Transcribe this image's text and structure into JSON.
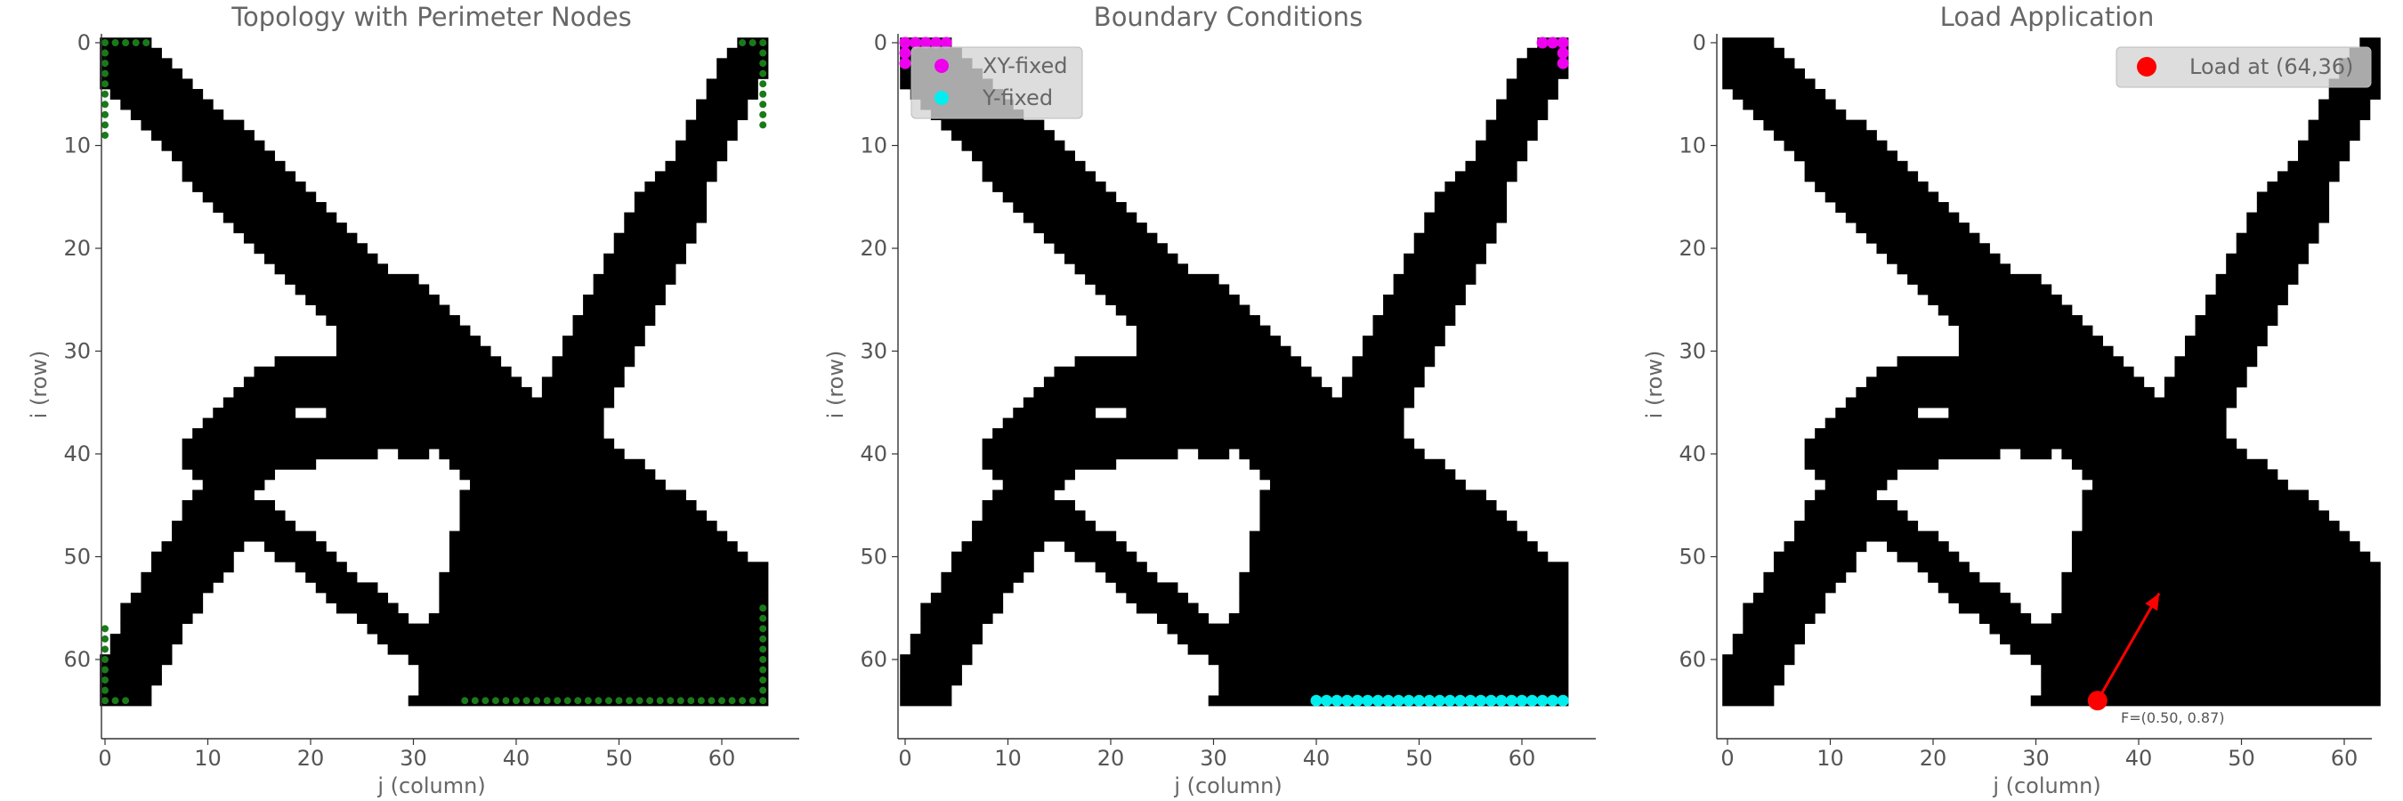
{
  "figure": {
    "xlabel": "j (column)",
    "ylabel": "i (row)",
    "xticks": [
      0,
      10,
      20,
      30,
      40,
      50,
      60
    ],
    "yticks": [
      0,
      10,
      20,
      30,
      40,
      50,
      60
    ]
  },
  "chart_data": [
    {
      "type": "heatmap",
      "title": "Topology with Perimeter Nodes",
      "xlabel": "j (column)",
      "ylabel": "i (row)",
      "xlim": [
        -0.5,
        67.5
      ],
      "ylim": [
        67.5,
        -0.5
      ],
      "colors": {
        "material": "#000000",
        "node": "#1a7a1a"
      },
      "series": [
        {
          "x": [
            0,
            1,
            2,
            3,
            4,
            0,
            0,
            0,
            0,
            0,
            0,
            0,
            0,
            0,
            62,
            63,
            64,
            64,
            64,
            64,
            64,
            64,
            64,
            64,
            64,
            0,
            0,
            0,
            0,
            0,
            0,
            0,
            0,
            0,
            1,
            2,
            64,
            64,
            64,
            64,
            64,
            64,
            64,
            64,
            64,
            64,
            35,
            36,
            37,
            38,
            39,
            40,
            41,
            42,
            43,
            44,
            45,
            46,
            47,
            48,
            49,
            50,
            51,
            52,
            53,
            54,
            55,
            56,
            57,
            58,
            59,
            60,
            61,
            62,
            63
          ],
          "y": [
            0,
            0,
            0,
            0,
            0,
            1,
            2,
            3,
            4,
            5,
            6,
            7,
            8,
            9,
            0,
            0,
            0,
            1,
            2,
            3,
            4,
            5,
            6,
            7,
            8,
            57,
            58,
            59,
            60,
            61,
            62,
            63,
            64,
            64,
            64,
            64,
            55,
            56,
            57,
            58,
            59,
            60,
            61,
            62,
            63,
            64,
            64,
            64,
            64,
            64,
            64,
            64,
            64,
            64,
            64,
            64,
            64,
            64,
            64,
            64,
            64,
            64,
            64,
            64,
            64,
            64,
            64,
            64,
            64,
            64,
            64,
            64,
            64,
            64,
            64
          ]
        }
      ]
    },
    {
      "type": "heatmap",
      "title": "Boundary Conditions",
      "xlabel": "j (column)",
      "ylabel": "i (row)",
      "xlim": [
        -0.5,
        67.5
      ],
      "ylim": [
        67.5,
        -0.5
      ],
      "legend": {
        "position": "upper-left",
        "entries": [
          {
            "label": "XY-fixed",
            "color": "#ee00ee"
          },
          {
            "label": "Y-fixed",
            "color": "#00eeee"
          }
        ]
      },
      "series": [
        {
          "name": "XY-fixed",
          "color": "#ee00ee",
          "x": [
            0,
            1,
            2,
            3,
            4,
            0,
            0,
            62,
            63,
            64,
            64,
            64
          ],
          "y": [
            0,
            0,
            0,
            0,
            0,
            1,
            2,
            0,
            0,
            0,
            1,
            2
          ]
        },
        {
          "name": "Y-fixed",
          "color": "#00eeee",
          "x": [
            40,
            41,
            42,
            43,
            44,
            45,
            46,
            47,
            48,
            49,
            50,
            51,
            52,
            53,
            54,
            55,
            56,
            57,
            58,
            59,
            60,
            61,
            62,
            63,
            64
          ],
          "y": [
            64,
            64,
            64,
            64,
            64,
            64,
            64,
            64,
            64,
            64,
            64,
            64,
            64,
            64,
            64,
            64,
            64,
            64,
            64,
            64,
            64,
            64,
            64,
            64,
            64
          ]
        }
      ]
    },
    {
      "type": "heatmap",
      "title": "Load Application",
      "xlabel": "j (column)",
      "ylabel": "i (row)",
      "xlim": [
        -0.5,
        63.5
      ],
      "ylim": [
        67.5,
        -0.5
      ],
      "legend": {
        "position": "upper-right",
        "entries": [
          {
            "label": "Load at (64,36)",
            "color": "#ff0000"
          }
        ]
      },
      "load": {
        "x": 36,
        "y": 64,
        "fx": 0.5,
        "fy": 0.87,
        "label": "F=(0.50, 0.87)"
      }
    }
  ]
}
